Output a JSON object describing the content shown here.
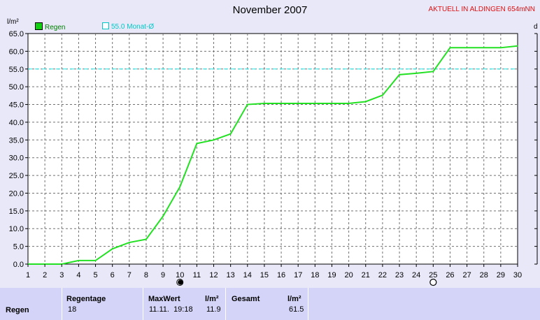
{
  "header": {
    "title": "November 2007",
    "station": "AKTUELL IN ALDINGEN 654mNN",
    "y_unit": "l/m²",
    "right_cut_label": "d"
  },
  "legend": {
    "series_label": "Regen",
    "reference_label": "55.0 Monat-Ø"
  },
  "colors": {
    "series": "#22e022",
    "reference": "#22e6e6",
    "station": "#e01010"
  },
  "chart_data": {
    "type": "line",
    "title": "November 2007",
    "ylabel": "l/m²",
    "ylim": [
      0,
      65
    ],
    "xlim": [
      1,
      30
    ],
    "grid": true,
    "y_ticks": [
      "0.0",
      "5.0",
      "10.0",
      "15.0",
      "20.0",
      "25.0",
      "30.0",
      "35.0",
      "40.0",
      "45.0",
      "50.0",
      "55.0",
      "60.0",
      "65.0"
    ],
    "x_ticks": [
      "1",
      "2",
      "3",
      "4",
      "5",
      "6",
      "7",
      "8",
      "9",
      "10",
      "11",
      "12",
      "13",
      "14",
      "15",
      "16",
      "17",
      "18",
      "19",
      "20",
      "21",
      "22",
      "23",
      "24",
      "25",
      "26",
      "27",
      "28",
      "29",
      "30"
    ],
    "series": [
      {
        "name": "Regen",
        "x": [
          1,
          2,
          3,
          4,
          5,
          6,
          7,
          8,
          9,
          10,
          11,
          12,
          13,
          14,
          15,
          16,
          17,
          18,
          19,
          20,
          21,
          22,
          23,
          24,
          25,
          26,
          27,
          28,
          29,
          30
        ],
        "values": [
          0,
          0,
          0,
          1,
          1,
          4.3,
          6.1,
          7,
          13.5,
          21.8,
          34,
          35,
          36.7,
          45,
          45.3,
          45.3,
          45.3,
          45.3,
          45.3,
          45.3,
          45.8,
          47.6,
          53.4,
          53.8,
          54.3,
          61,
          61,
          61,
          61,
          61.5
        ]
      }
    ],
    "reference_line": {
      "label": "55.0 Monat-Ø",
      "value": 55.0
    },
    "moon_markers": [
      {
        "day": 10,
        "phase": "new-moon"
      },
      {
        "day": 25,
        "phase": "full-moon"
      }
    ]
  },
  "stats": {
    "row_label": "Regen",
    "regentage_header": "Regentage",
    "regentage_value": "18",
    "maxwert_header": "MaxWert",
    "maxwert_unit": "l/m²",
    "maxwert_time": "11.11.  19:18",
    "maxwert_value": "11.9",
    "gesamt_header": "Gesamt",
    "gesamt_unit": "l/m²",
    "gesamt_value": "61.5"
  }
}
